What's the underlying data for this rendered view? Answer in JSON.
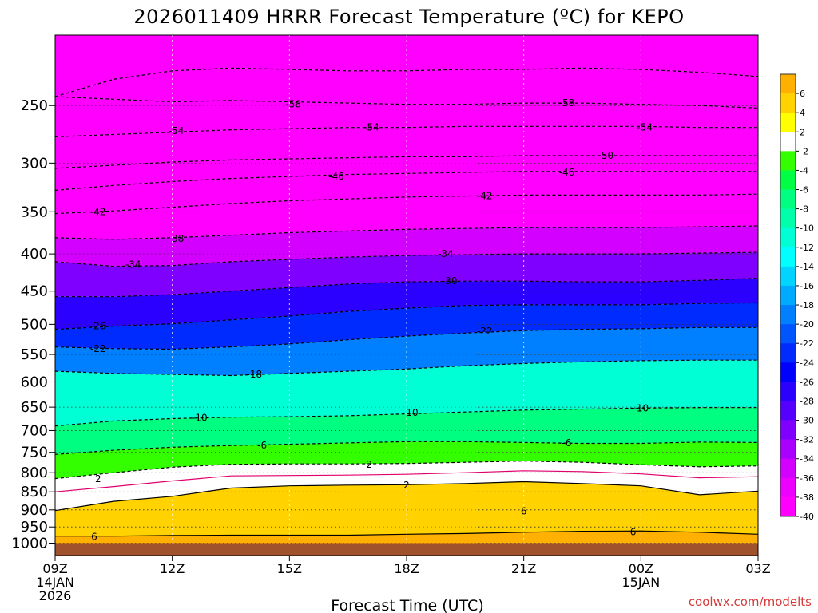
{
  "chart_data": {
    "type": "heatmap",
    "title": "2026011409 HRRR Forecast Temperature (ºC) for KEPO",
    "xlabel": "Forecast Time (UTC)",
    "credit": "coolwx.com/modelts",
    "y_axis": {
      "scale": "log-pressure",
      "range": [
        1040,
        200
      ],
      "ticks": [
        "250",
        "300",
        "350",
        "400",
        "450",
        "500",
        "550",
        "600",
        "650",
        "700",
        "750",
        "800",
        "850",
        "900",
        "950",
        "1000"
      ]
    },
    "x_axis": {
      "range_hours": [
        0,
        18
      ],
      "ticks": [
        {
          "h": 0,
          "line1": "09Z",
          "line2": "14JAN",
          "line3": "2026"
        },
        {
          "h": 3,
          "line1": "12Z",
          "line2": "",
          "line3": ""
        },
        {
          "h": 6,
          "line1": "15Z",
          "line2": "",
          "line3": ""
        },
        {
          "h": 9,
          "line1": "18Z",
          "line2": "",
          "line3": ""
        },
        {
          "h": 12,
          "line1": "21Z",
          "line2": "",
          "line3": ""
        },
        {
          "h": 15,
          "line1": "00Z",
          "line2": "15JAN",
          "line3": ""
        },
        {
          "h": 18,
          "line1": "03Z",
          "line2": "",
          "line3": ""
        }
      ]
    },
    "ground_pressure": 1000,
    "colorbar": {
      "tick_labels": [
        "6",
        "4",
        "2",
        "-2",
        "-4",
        "-6",
        "-8",
        "-10",
        "-12",
        "-14",
        "-16",
        "-18",
        "-20",
        "-22",
        "-24",
        "-26",
        "-28",
        "-30",
        "-32",
        "-34",
        "-36",
        "-38",
        "-40"
      ],
      "bins": [
        {
          "lo": 6,
          "hi": 8,
          "color": "#ffb000"
        },
        {
          "lo": 4,
          "hi": 6,
          "color": "#ffd200"
        },
        {
          "lo": 2,
          "hi": 4,
          "color": "#ffff00"
        },
        {
          "lo": -2,
          "hi": 2,
          "color": "#ffffff"
        },
        {
          "lo": -4,
          "hi": -2,
          "color": "#33ff00"
        },
        {
          "lo": -6,
          "hi": -4,
          "color": "#00ff44"
        },
        {
          "lo": -8,
          "hi": -6,
          "color": "#00ff80"
        },
        {
          "lo": -10,
          "hi": -8,
          "color": "#00ffaa"
        },
        {
          "lo": -12,
          "hi": -10,
          "color": "#00ffd4"
        },
        {
          "lo": -14,
          "hi": -12,
          "color": "#00ffff"
        },
        {
          "lo": -16,
          "hi": -14,
          "color": "#00d4ff"
        },
        {
          "lo": -18,
          "hi": -16,
          "color": "#00aaff"
        },
        {
          "lo": -20,
          "hi": -18,
          "color": "#0080ff"
        },
        {
          "lo": -22,
          "hi": -20,
          "color": "#0055ff"
        },
        {
          "lo": -24,
          "hi": -22,
          "color": "#002bff"
        },
        {
          "lo": -26,
          "hi": -24,
          "color": "#0000ff"
        },
        {
          "lo": -28,
          "hi": -26,
          "color": "#2b00ff"
        },
        {
          "lo": -30,
          "hi": -28,
          "color": "#5500ff"
        },
        {
          "lo": -32,
          "hi": -30,
          "color": "#8000ff"
        },
        {
          "lo": -34,
          "hi": -32,
          "color": "#aa00ff"
        },
        {
          "lo": -36,
          "hi": -34,
          "color": "#d400ff"
        },
        {
          "lo": -38,
          "hi": -36,
          "color": "#ee00ff"
        },
        {
          "lo": -40,
          "hi": -38,
          "color": "#ff00ff"
        }
      ]
    },
    "contours": [
      {
        "level": 6,
        "style": "solid",
        "color": "#000000",
        "p": [
          978,
          978,
          976,
          975,
          975,
          975,
          972,
          970,
          966,
          963,
          962,
          966,
          972
        ]
      },
      {
        "level": 2,
        "style": "solid",
        "color": "#000000",
        "p": [
          902,
          876,
          862,
          840,
          834,
          832,
          831,
          828,
          823,
          828,
          834,
          858,
          848
        ]
      },
      {
        "level": 0,
        "style": "solid",
        "color": "#e0006e",
        "p": [
          850,
          836,
          821,
          808,
          807,
          806,
          804,
          800,
          795,
          797,
          803,
          813,
          810
        ]
      },
      {
        "level": -2,
        "style": "dashed",
        "color": "#000000",
        "p": [
          815,
          800,
          786,
          779,
          778,
          778,
          777,
          774,
          771,
          774,
          780,
          785,
          783
        ]
      },
      {
        "level": -6,
        "style": "dashed",
        "color": "#000000",
        "p": [
          755,
          745,
          738,
          734,
          731,
          728,
          725,
          725,
          727,
          729,
          729,
          726,
          727
        ]
      },
      {
        "level": -10,
        "style": "dashed",
        "color": "#000000",
        "p": [
          690,
          679,
          674,
          671,
          670,
          668,
          664,
          660,
          656,
          654,
          652,
          651,
          651
        ]
      },
      {
        "level": -18,
        "style": "dashed",
        "color": "#000000",
        "p": [
          580,
          584,
          586,
          588,
          584,
          580,
          576,
          570,
          566,
          563,
          561,
          560,
          560
        ]
      },
      {
        "level": -22,
        "style": "dashed",
        "color": "#000000",
        "p": [
          537,
          540,
          541,
          537,
          532,
          525,
          519,
          514,
          510,
          508,
          507,
          505,
          505
        ]
      },
      {
        "level": -26,
        "style": "dashed",
        "color": "#000000",
        "p": [
          508,
          503,
          499,
          493,
          487,
          480,
          475,
          471,
          470,
          470,
          470,
          468,
          467
        ]
      },
      {
        "level": -30,
        "style": "dashed",
        "color": "#000000",
        "p": [
          458,
          458,
          455,
          450,
          445,
          440,
          437,
          436,
          436,
          437,
          437,
          435,
          432
        ]
      },
      {
        "level": -34,
        "style": "dashed",
        "color": "#000000",
        "p": [
          410,
          416,
          415,
          410,
          407,
          404,
          402,
          401,
          400,
          400,
          400,
          399,
          398
        ]
      },
      {
        "level": -38,
        "style": "dashed",
        "color": "#000000",
        "p": [
          380,
          382,
          380,
          377,
          374,
          372,
          370,
          369,
          368,
          368,
          368,
          367,
          366
        ]
      },
      {
        "level": -42,
        "style": "dashed",
        "color": "#000000",
        "p": [
          352,
          349,
          345,
          341,
          338,
          336,
          334,
          333,
          332,
          332,
          332,
          332,
          331
        ]
      },
      {
        "level": -46,
        "style": "dashed",
        "color": "#000000",
        "p": [
          327,
          322,
          318,
          315,
          313,
          311,
          310,
          309,
          308,
          308,
          308,
          308,
          308
        ]
      },
      {
        "level": -50,
        "style": "dashed",
        "color": "#000000",
        "p": [
          305,
          302,
          299,
          297,
          296,
          295,
          294,
          294,
          293,
          293,
          293,
          293,
          293
        ]
      },
      {
        "level": -54,
        "style": "dashed",
        "color": "#000000",
        "p": [
          276,
          274,
          272,
          270,
          269,
          268,
          268,
          267,
          267,
          267,
          267,
          268,
          268
        ]
      },
      {
        "level": -58,
        "style": "dashed",
        "color": "#000000",
        "p": [
          243,
          245,
          247,
          246,
          247,
          248,
          249,
          249,
          248,
          248,
          249,
          250,
          252
        ]
      },
      {
        "level": -62,
        "style": "dashed",
        "color": "#000000",
        "p": [
          243,
          230,
          224,
          222,
          223,
          224,
          224,
          223,
          223,
          222,
          223,
          225,
          228
        ]
      }
    ],
    "contour_labels": [
      {
        "text": "6",
        "h": 1.0,
        "p": 980
      },
      {
        "text": "6",
        "h": 12.0,
        "p": 904
      },
      {
        "text": "6",
        "h": 14.8,
        "p": 965
      },
      {
        "text": "2",
        "h": 1.1,
        "p": 816
      },
      {
        "text": "2",
        "h": 9.0,
        "p": 832
      },
      {
        "text": "-2",
        "h": 8.0,
        "p": 780
      },
      {
        "text": "-6",
        "h": 5.3,
        "p": 734
      },
      {
        "text": "-6",
        "h": 13.1,
        "p": 728
      },
      {
        "text": "-10",
        "h": 3.7,
        "p": 672
      },
      {
        "text": "-10",
        "h": 9.1,
        "p": 661
      },
      {
        "text": "-10",
        "h": 15.0,
        "p": 652
      },
      {
        "text": "-18",
        "h": 5.1,
        "p": 586
      },
      {
        "text": "-22",
        "h": 1.1,
        "p": 540
      },
      {
        "text": "-22",
        "h": 11.0,
        "p": 511
      },
      {
        "text": "-26",
        "h": 1.1,
        "p": 503
      },
      {
        "text": "-30",
        "h": 10.1,
        "p": 436
      },
      {
        "text": "-34",
        "h": 2.0,
        "p": 414
      },
      {
        "text": "-34",
        "h": 10.0,
        "p": 400
      },
      {
        "text": "-38",
        "h": 3.1,
        "p": 381
      },
      {
        "text": "-42",
        "h": 1.1,
        "p": 350
      },
      {
        "text": "-42",
        "h": 11.0,
        "p": 333
      },
      {
        "text": "-46",
        "h": 7.2,
        "p": 313
      },
      {
        "text": "-46",
        "h": 13.1,
        "p": 309
      },
      {
        "text": "-50",
        "h": 14.1,
        "p": 293
      },
      {
        "text": "-54",
        "h": 3.1,
        "p": 271
      },
      {
        "text": "-54",
        "h": 8.1,
        "p": 268
      },
      {
        "text": "-54",
        "h": 15.1,
        "p": 268
      },
      {
        "text": "-58",
        "h": 6.1,
        "p": 249
      },
      {
        "text": "-58",
        "h": 13.1,
        "p": 248
      }
    ]
  }
}
